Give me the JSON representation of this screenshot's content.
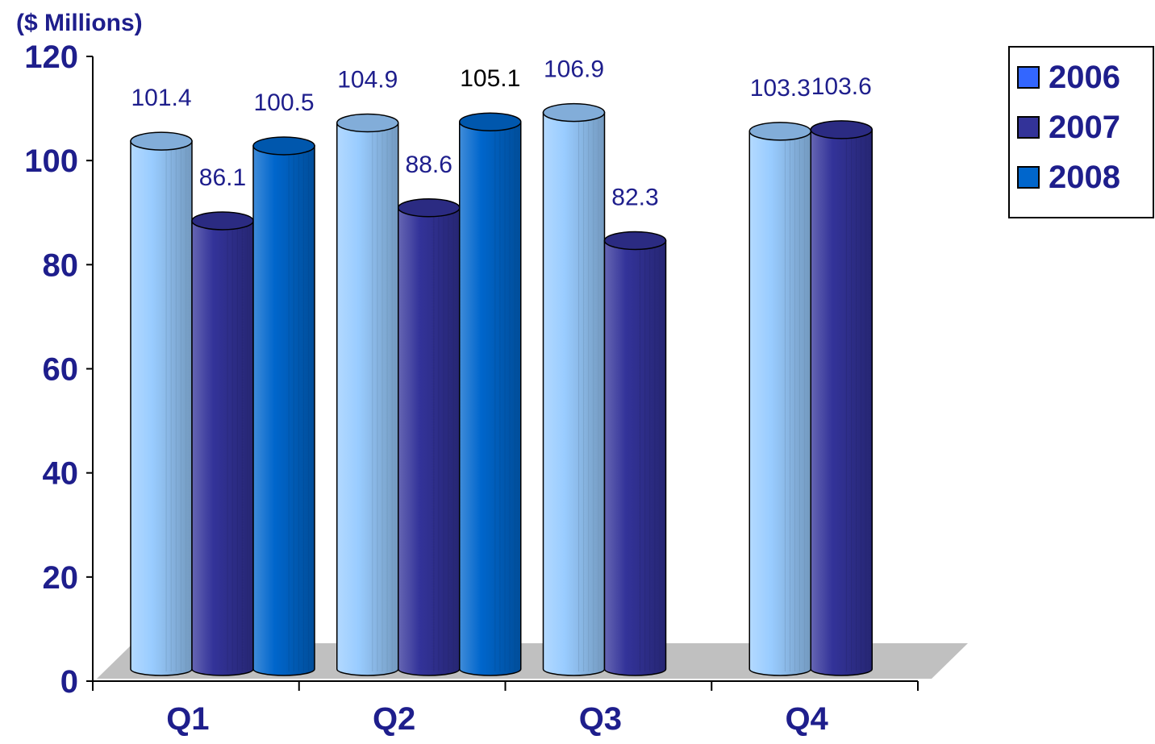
{
  "chart_data": {
    "type": "bar",
    "style": "3d-cylinder",
    "unit_label": "($ Millions)",
    "categories": [
      "Q1",
      "Q2",
      "Q3",
      "Q4"
    ],
    "series": [
      {
        "name": "2006",
        "values": [
          101.4,
          104.9,
          106.9,
          103.3
        ],
        "color": "#99ccff",
        "legend_color": "#3366ff",
        "label_color": "#1e1e8c"
      },
      {
        "name": "2007",
        "values": [
          86.1,
          88.6,
          82.3,
          103.6
        ],
        "color": "#333399",
        "legend_color": "#333399",
        "label_color": "#1e1e8c"
      },
      {
        "name": "2008",
        "values": [
          100.5,
          105.1,
          null,
          null
        ],
        "color": "#0066cc",
        "legend_color": "#0066cc",
        "label_color": "#1e1e8c",
        "label_colors": [
          "#1e1e8c",
          "#000000",
          null,
          null
        ]
      }
    ],
    "value_labels": [
      [
        "101.4",
        "104.9",
        "106.9",
        "103.3"
      ],
      [
        "86.1",
        "88.6",
        "82.3",
        "103.6"
      ],
      [
        "100.5",
        "105.1",
        "",
        ""
      ]
    ],
    "ylim": [
      0,
      120
    ],
    "yticks": [
      "0",
      "20",
      "40",
      "60",
      "80",
      "100",
      "120"
    ],
    "grid": false,
    "legend_position": "top-right",
    "floor_color": "#c0c0c0",
    "axis_color": "#000000"
  }
}
